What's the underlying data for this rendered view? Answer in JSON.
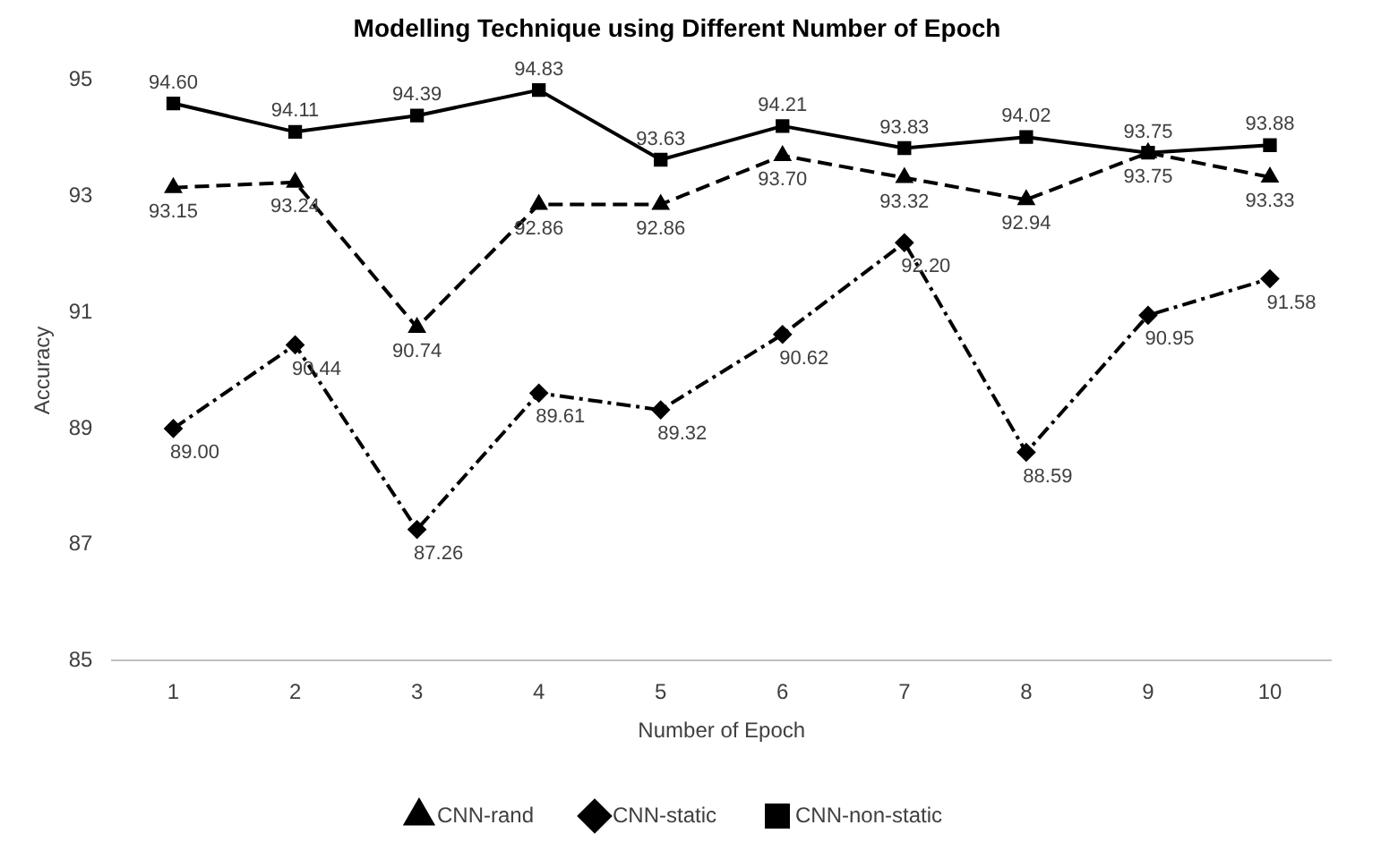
{
  "chart_data": {
    "type": "line",
    "title": "Modelling Technique using Different Number of Epoch",
    "xlabel": "Number of Epoch",
    "ylabel": "Accuracy",
    "categories": [
      "1",
      "2",
      "3",
      "4",
      "5",
      "6",
      "7",
      "8",
      "9",
      "10"
    ],
    "ylim": [
      85,
      95
    ],
    "yticks": [
      85,
      87,
      89,
      91,
      93,
      95
    ],
    "grid": false,
    "legend": "bottom",
    "series": [
      {
        "name": "CNN-rand",
        "color": "#000000",
        "marker": "triangle",
        "line_style": "dashed",
        "values": [
          93.15,
          93.24,
          90.74,
          92.86,
          92.86,
          93.7,
          93.32,
          92.94,
          93.75,
          93.33
        ],
        "value_labels": [
          "93.15",
          "93.24",
          "90.74",
          "92.86",
          "92.86",
          "93.70",
          "93.32",
          "92.94",
          "93.75",
          "93.33"
        ]
      },
      {
        "name": "CNN-static",
        "color": "#000000",
        "marker": "diamond",
        "line_style": "dashed",
        "values": [
          89.0,
          90.44,
          87.26,
          89.61,
          89.32,
          90.62,
          92.2,
          88.59,
          90.95,
          91.58
        ],
        "value_labels": [
          "89.00",
          "90.44",
          "87.26",
          "89.61",
          "89.32",
          "90.62",
          "92.20",
          "88.59",
          "90.95",
          "91.58"
        ]
      },
      {
        "name": "CNN-non-static",
        "color": "#000000",
        "marker": "square",
        "line_style": "solid",
        "values": [
          94.6,
          94.11,
          94.39,
          94.83,
          93.63,
          94.21,
          93.83,
          94.02,
          93.75,
          93.88
        ],
        "value_labels": [
          "94.60",
          "94.11",
          "94.39",
          "94.83",
          "93.63",
          "94.21",
          "93.83",
          "94.02",
          "93.75",
          "93.88"
        ]
      }
    ]
  }
}
